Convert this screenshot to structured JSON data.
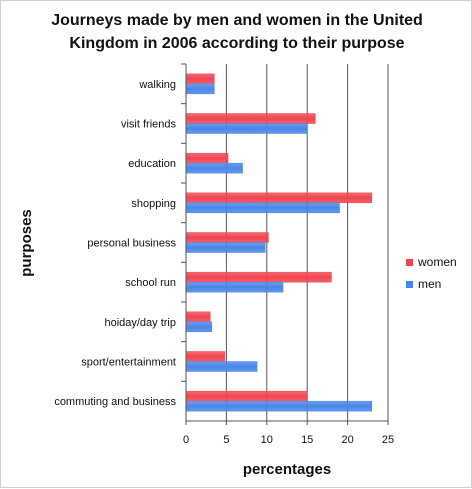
{
  "chart_data": {
    "type": "bar",
    "orientation": "horizontal",
    "title_lines": [
      "Journeys made by men and women in the United",
      "Kingdom in 2006 according to their purpose"
    ],
    "xlabel": "percentages",
    "ylabel": "purposes",
    "xlim": [
      0,
      25
    ],
    "xticks": [
      "0",
      "5",
      "10",
      "15",
      "20",
      "25"
    ],
    "grid": "vertical",
    "legend_position": "right",
    "categories": [
      "walking",
      "visit friends",
      "education",
      "shopping",
      "personal business",
      "school run",
      "hoiday/day trip",
      "sport/entertainment",
      "commuting and business"
    ],
    "series": [
      {
        "name": "women",
        "color": "#f0454f",
        "values": [
          3.5,
          16,
          5.2,
          23,
          10.2,
          18,
          3,
          4.8,
          15
        ]
      },
      {
        "name": "men",
        "color": "#4a86e8",
        "values": [
          3.5,
          15,
          7,
          19,
          9.8,
          12,
          3.2,
          8.8,
          23
        ]
      }
    ]
  }
}
